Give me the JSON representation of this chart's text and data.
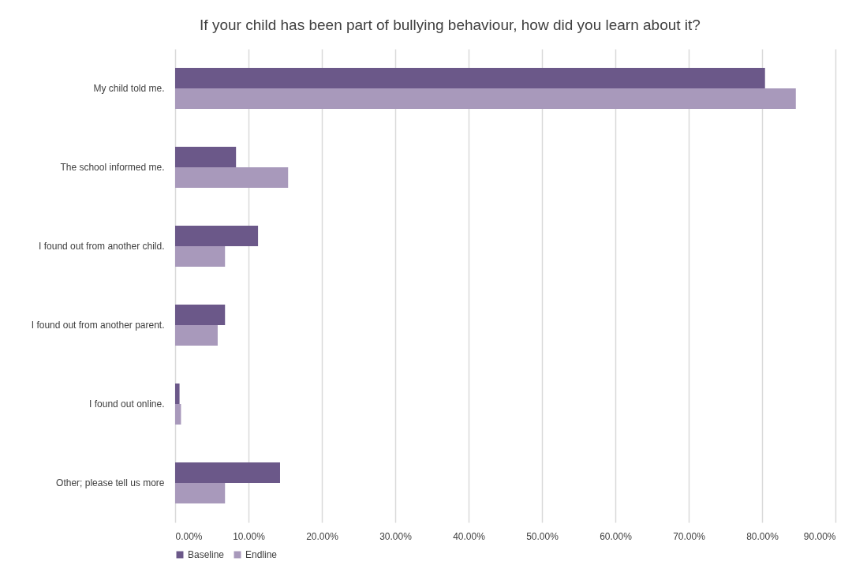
{
  "chart_data": {
    "type": "bar",
    "orientation": "horizontal",
    "title": "If your child has been part of bullying behaviour, how did you learn about it?",
    "categories": [
      "My child told me.",
      "The school informed me.",
      "I found out from another child.",
      "I found out from another parent.",
      "I found out online.",
      "Other; please tell us more"
    ],
    "series": [
      {
        "name": "Baseline",
        "color": "#6b5889",
        "values": [
          80.4,
          8.3,
          11.3,
          6.8,
          0.6,
          14.3
        ]
      },
      {
        "name": "Endline",
        "color": "#a899bb",
        "values": [
          84.6,
          15.4,
          6.8,
          5.8,
          0.8,
          6.8
        ]
      }
    ],
    "xlim": [
      0,
      90
    ],
    "xticks": [
      {
        "value": 0,
        "label": "0.00%"
      },
      {
        "value": 10,
        "label": "10.00%"
      },
      {
        "value": 20,
        "label": "20.00%"
      },
      {
        "value": 30,
        "label": "30.00%"
      },
      {
        "value": 40,
        "label": "40.00%"
      },
      {
        "value": 50,
        "label": "50.00%"
      },
      {
        "value": 60,
        "label": "60.00%"
      },
      {
        "value": 70,
        "label": "70.00%"
      },
      {
        "value": 80,
        "label": "80.00%"
      },
      {
        "value": 90,
        "label": "90.00%"
      }
    ],
    "grid": "x",
    "legend": "bottom"
  }
}
